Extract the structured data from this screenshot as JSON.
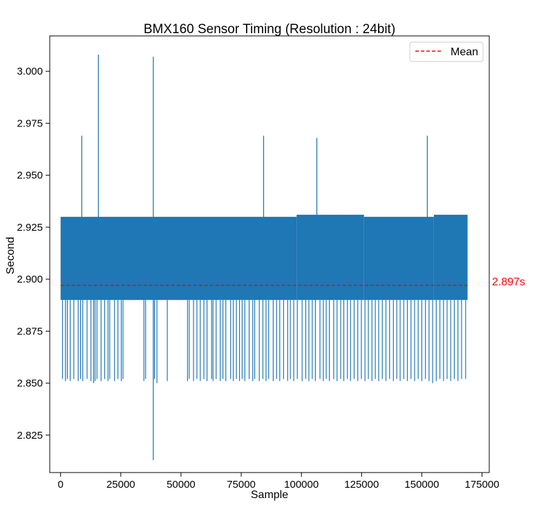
{
  "chart_data": {
    "type": "line",
    "title": "BMX160 Sensor Timing (Resolution : 24bit)",
    "xlabel": "Sample",
    "ylabel": "Second",
    "xlim": [
      -4500,
      178000
    ],
    "ylim": [
      2.807,
      3.017
    ],
    "x_ticks": [
      0,
      25000,
      50000,
      75000,
      100000,
      125000,
      150000,
      175000
    ],
    "y_ticks": [
      2.825,
      2.85,
      2.875,
      2.9,
      2.925,
      2.95,
      2.975,
      3.0
    ],
    "grid": false,
    "legend_position": "top-right",
    "colors": {
      "series": "#1f77b4",
      "mean": "#ff0000",
      "text": "#000000",
      "axes": "#000000"
    },
    "series": [
      {
        "x_range": [
          0,
          169000
        ],
        "band_low": 2.89,
        "band_high_segments": [
          {
            "x": [
              0,
              98000
            ],
            "y": 2.93
          },
          {
            "x": [
              98000,
              126000
            ],
            "y": 2.931
          },
          {
            "x": [
              126000,
              155000
            ],
            "y": 2.93
          },
          {
            "x": [
              155000,
              169000
            ],
            "y": 2.931
          }
        ],
        "spikes": [
          {
            "x": 8800,
            "y": 2.969
          },
          {
            "x": 15700,
            "y": 3.008
          },
          {
            "x": 38500,
            "y": 3.007
          },
          {
            "x": 84300,
            "y": 2.969
          },
          {
            "x": 106400,
            "y": 2.968
          },
          {
            "x": 152300,
            "y": 2.969
          },
          {
            "x": 38500,
            "y": 2.813
          }
        ],
        "dips": [
          {
            "x": 800,
            "y": 2.852
          },
          {
            "x": 2000,
            "y": 2.851
          },
          {
            "x": 2800,
            "y": 2.852
          },
          {
            "x": 4000,
            "y": 2.851
          },
          {
            "x": 5500,
            "y": 2.852
          },
          {
            "x": 7300,
            "y": 2.851
          },
          {
            "x": 8300,
            "y": 2.852
          },
          {
            "x": 9200,
            "y": 2.851
          },
          {
            "x": 11000,
            "y": 2.852
          },
          {
            "x": 12600,
            "y": 2.851
          },
          {
            "x": 13700,
            "y": 2.85
          },
          {
            "x": 14300,
            "y": 2.851
          },
          {
            "x": 15100,
            "y": 2.852
          },
          {
            "x": 16800,
            "y": 2.851
          },
          {
            "x": 18300,
            "y": 2.852
          },
          {
            "x": 19700,
            "y": 2.851
          },
          {
            "x": 20400,
            "y": 2.852
          },
          {
            "x": 22400,
            "y": 2.851
          },
          {
            "x": 23800,
            "y": 2.852
          },
          {
            "x": 25200,
            "y": 2.851
          },
          {
            "x": 25900,
            "y": 2.852
          },
          {
            "x": 34600,
            "y": 2.851
          },
          {
            "x": 35300,
            "y": 2.852
          },
          {
            "x": 39000,
            "y": 2.852
          },
          {
            "x": 40000,
            "y": 2.85
          },
          {
            "x": 44300,
            "y": 2.851
          },
          {
            "x": 52700,
            "y": 2.851
          },
          {
            "x": 53400,
            "y": 2.852
          },
          {
            "x": 55200,
            "y": 2.851
          },
          {
            "x": 56600,
            "y": 2.852
          },
          {
            "x": 58000,
            "y": 2.851
          },
          {
            "x": 59500,
            "y": 2.852
          },
          {
            "x": 60800,
            "y": 2.851
          },
          {
            "x": 62700,
            "y": 2.852
          },
          {
            "x": 63300,
            "y": 2.851
          },
          {
            "x": 64600,
            "y": 2.852
          },
          {
            "x": 66300,
            "y": 2.851
          },
          {
            "x": 67400,
            "y": 2.852
          },
          {
            "x": 68600,
            "y": 2.851
          },
          {
            "x": 70600,
            "y": 2.852
          },
          {
            "x": 71700,
            "y": 2.851
          },
          {
            "x": 73000,
            "y": 2.852
          },
          {
            "x": 74300,
            "y": 2.851
          },
          {
            "x": 75400,
            "y": 2.852
          },
          {
            "x": 76500,
            "y": 2.851
          },
          {
            "x": 78300,
            "y": 2.852
          },
          {
            "x": 79800,
            "y": 2.851
          },
          {
            "x": 80600,
            "y": 2.852
          },
          {
            "x": 82500,
            "y": 2.851
          },
          {
            "x": 84000,
            "y": 2.852
          },
          {
            "x": 85300,
            "y": 2.851
          },
          {
            "x": 86400,
            "y": 2.852
          },
          {
            "x": 88300,
            "y": 2.851
          },
          {
            "x": 89700,
            "y": 2.852
          },
          {
            "x": 91000,
            "y": 2.851
          },
          {
            "x": 92600,
            "y": 2.852
          },
          {
            "x": 94300,
            "y": 2.851
          },
          {
            "x": 95400,
            "y": 2.852
          },
          {
            "x": 96800,
            "y": 2.851
          },
          {
            "x": 98300,
            "y": 2.852
          },
          {
            "x": 100300,
            "y": 2.851
          },
          {
            "x": 101800,
            "y": 2.852
          },
          {
            "x": 103100,
            "y": 2.851
          },
          {
            "x": 104500,
            "y": 2.852
          },
          {
            "x": 105800,
            "y": 2.851
          },
          {
            "x": 107700,
            "y": 2.852
          },
          {
            "x": 109100,
            "y": 2.851
          },
          {
            "x": 110300,
            "y": 2.852
          },
          {
            "x": 111600,
            "y": 2.851
          },
          {
            "x": 113400,
            "y": 2.852
          },
          {
            "x": 114800,
            "y": 2.851
          },
          {
            "x": 116300,
            "y": 2.852
          },
          {
            "x": 117600,
            "y": 2.851
          },
          {
            "x": 119100,
            "y": 2.852
          },
          {
            "x": 120400,
            "y": 2.851
          },
          {
            "x": 121900,
            "y": 2.852
          },
          {
            "x": 123400,
            "y": 2.851
          },
          {
            "x": 124900,
            "y": 2.852
          },
          {
            "x": 126400,
            "y": 2.851
          },
          {
            "x": 127800,
            "y": 2.852
          },
          {
            "x": 129300,
            "y": 2.851
          },
          {
            "x": 130700,
            "y": 2.852
          },
          {
            "x": 132100,
            "y": 2.851
          },
          {
            "x": 133600,
            "y": 2.852
          },
          {
            "x": 135100,
            "y": 2.851
          },
          {
            "x": 136600,
            "y": 2.852
          },
          {
            "x": 138200,
            "y": 2.851
          },
          {
            "x": 139600,
            "y": 2.852
          },
          {
            "x": 141000,
            "y": 2.851
          },
          {
            "x": 142500,
            "y": 2.852
          },
          {
            "x": 144000,
            "y": 2.851
          },
          {
            "x": 145500,
            "y": 2.852
          },
          {
            "x": 147000,
            "y": 2.851
          },
          {
            "x": 148500,
            "y": 2.852
          },
          {
            "x": 150000,
            "y": 2.851
          },
          {
            "x": 151500,
            "y": 2.852
          },
          {
            "x": 153000,
            "y": 2.851
          },
          {
            "x": 154500,
            "y": 2.85
          },
          {
            "x": 156000,
            "y": 2.851
          },
          {
            "x": 157500,
            "y": 2.852
          },
          {
            "x": 159000,
            "y": 2.851
          },
          {
            "x": 160500,
            "y": 2.852
          },
          {
            "x": 162000,
            "y": 2.851
          },
          {
            "x": 163500,
            "y": 2.852
          },
          {
            "x": 165000,
            "y": 2.851
          },
          {
            "x": 166500,
            "y": 2.852
          },
          {
            "x": 168200,
            "y": 2.852
          }
        ]
      }
    ],
    "mean": {
      "value": 2.897,
      "x_range": [
        0,
        169000
      ],
      "legend_label": "Mean",
      "annotation": "2.897s"
    }
  }
}
